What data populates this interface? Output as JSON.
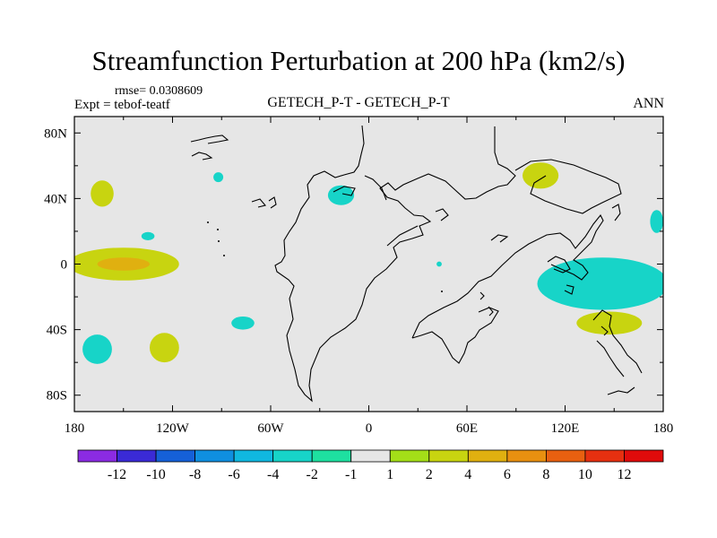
{
  "chart_data": {
    "type": "contour_map",
    "title": "Streamfunction Perturbation at 200 hPa (km2/s)",
    "rmse_label": "rmse= 0.0308609",
    "expt_label": "Expt = tebof-teatf",
    "center_label": "GETECH_P-T - GETECH_P-T",
    "season_label": "ANN",
    "lat_range": [
      -90,
      90
    ],
    "lon_range": [
      -180,
      180
    ],
    "x_ticks": [
      {
        "lon": -180,
        "label": "180"
      },
      {
        "lon": -120,
        "label": "120W"
      },
      {
        "lon": -60,
        "label": "60W"
      },
      {
        "lon": 0,
        "label": "0"
      },
      {
        "lon": 60,
        "label": "60E"
      },
      {
        "lon": 120,
        "label": "120E"
      },
      {
        "lon": 180,
        "label": "180"
      }
    ],
    "y_ticks": [
      {
        "lat": 80,
        "label": "80N"
      },
      {
        "lat": 40,
        "label": "40N"
      },
      {
        "lat": 0,
        "label": "0"
      },
      {
        "lat": -40,
        "label": "40S"
      },
      {
        "lat": -80,
        "label": "80S"
      }
    ],
    "colorbar": {
      "colors": [
        "#8b2be2",
        "#3a2ad6",
        "#1560d8",
        "#0f8fe0",
        "#10b8e0",
        "#17d4c8",
        "#1ee0a0",
        "#e6e6e6",
        "#a4de18",
        "#c8d410",
        "#e0b010",
        "#e89010",
        "#e86010",
        "#e63010",
        "#e00b0b"
      ],
      "labels": [
        "-12",
        "-10",
        "-8",
        "-6",
        "-4",
        "-2",
        "-1",
        "1",
        "2",
        "4",
        "6",
        "8",
        "10",
        "12"
      ]
    },
    "anomalies": [
      {
        "lon": -150,
        "lat": 0,
        "rx": 34,
        "ry": 10,
        "level": "2"
      },
      {
        "lon": -150,
        "lat": 0,
        "rx": 16,
        "ry": 4,
        "level": "4"
      },
      {
        "lon": -163,
        "lat": 43,
        "rx": 7,
        "ry": 8,
        "level": "2"
      },
      {
        "lon": -92,
        "lat": 53,
        "rx": 3,
        "ry": 3,
        "level": "-2"
      },
      {
        "lon": -135,
        "lat": 17,
        "rx": 4,
        "ry": 2.5,
        "level": "-2"
      },
      {
        "lon": -77,
        "lat": -36,
        "rx": 7,
        "ry": 4,
        "level": "-2"
      },
      {
        "lon": -166,
        "lat": -52,
        "rx": 9,
        "ry": 9,
        "level": "-2"
      },
      {
        "lon": -125,
        "lat": -51,
        "rx": 9,
        "ry": 9,
        "level": "2"
      },
      {
        "lon": -17,
        "lat": 42,
        "rx": 8,
        "ry": 6,
        "level": "-2"
      },
      {
        "lon": 105,
        "lat": 54,
        "rx": 11,
        "ry": 8,
        "level": "2"
      },
      {
        "lon": 143,
        "lat": -12,
        "rx": 40,
        "ry": 16,
        "level": "-2"
      },
      {
        "lon": 147,
        "lat": -36,
        "rx": 20,
        "ry": 7,
        "level": "2"
      },
      {
        "lon": 176,
        "lat": 26,
        "rx": 4,
        "ry": 7,
        "level": "-2"
      },
      {
        "lon": 43,
        "lat": 0,
        "rx": 1.6,
        "ry": 1.6,
        "level": "-2"
      }
    ]
  }
}
